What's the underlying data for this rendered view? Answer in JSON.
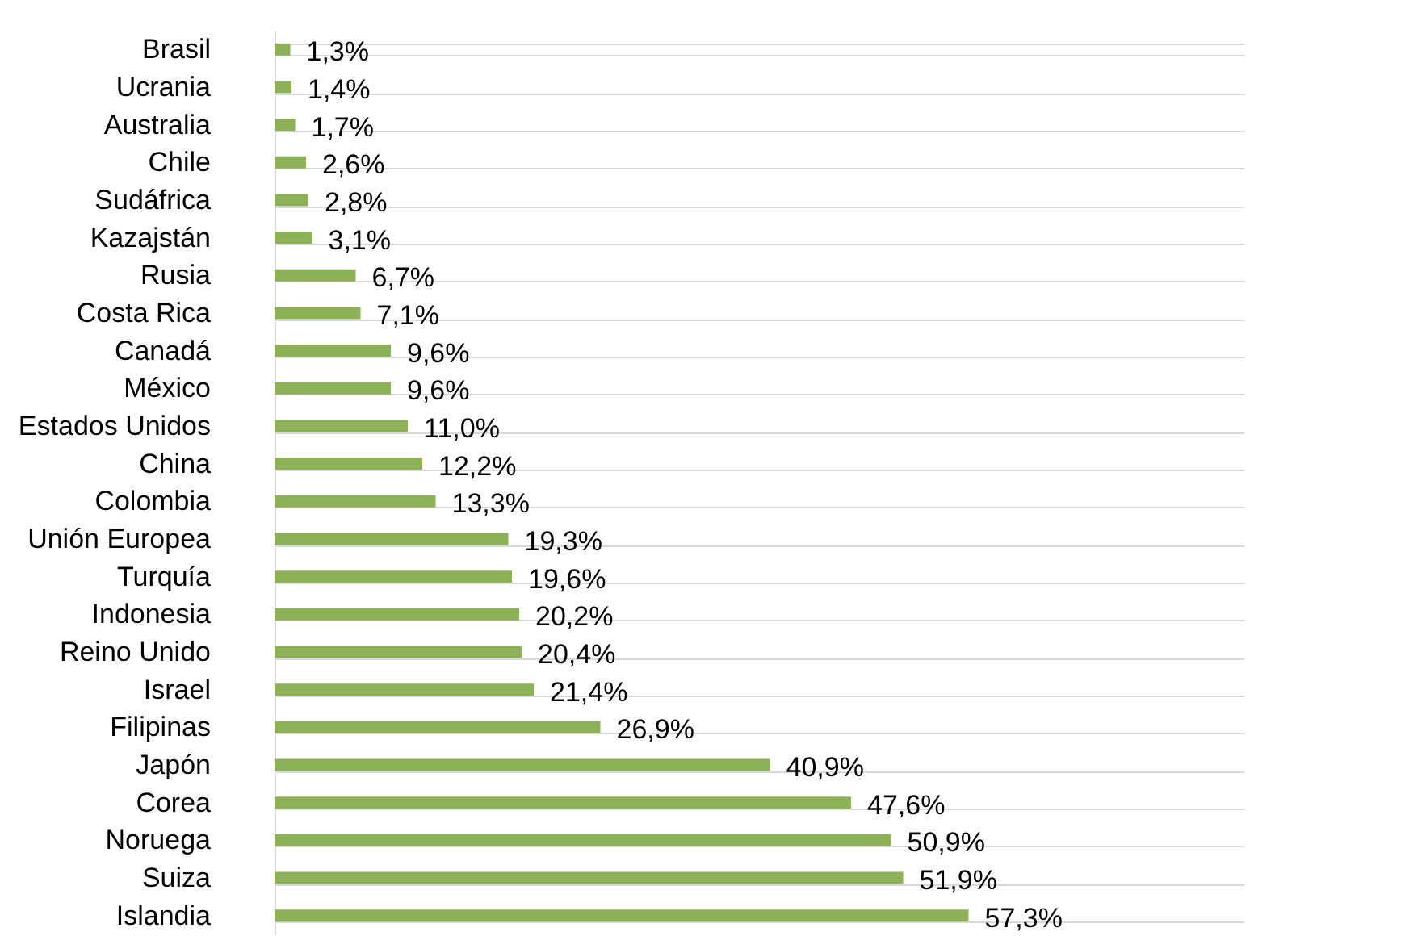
{
  "chart_data": {
    "type": "bar",
    "orientation": "horizontal",
    "categories": [
      "Brasil",
      "Ucrania",
      "Australia",
      "Chile",
      "Sudáfrica",
      "Kazajstán",
      "Rusia",
      "Costa Rica",
      "Canadá",
      "México",
      "Estados Unidos",
      "China",
      "Colombia",
      "Unión Europea",
      "Turquía",
      "Indonesia",
      "Reino Unido",
      "Israel",
      "Filipinas",
      "Japón",
      "Corea",
      "Noruega",
      "Suiza",
      "Islandia"
    ],
    "values": [
      1.3,
      1.4,
      1.7,
      2.6,
      2.8,
      3.1,
      6.7,
      7.1,
      9.6,
      9.6,
      11.0,
      12.2,
      13.3,
      19.3,
      19.6,
      20.2,
      20.4,
      21.4,
      26.9,
      40.9,
      47.6,
      50.9,
      51.9,
      57.3
    ],
    "value_labels": [
      "1,3%",
      "1,4%",
      "1,7%",
      "2,6%",
      "2,8%",
      "3,1%",
      "6,7%",
      "7,1%",
      "9,6%",
      "9,6%",
      "11,0%",
      "12,2%",
      "13,3%",
      "19,3%",
      "19,6%",
      "20,2%",
      "20,4%",
      "21,4%",
      "26,9%",
      "40,9%",
      "47,6%",
      "50,9%",
      "51,9%",
      "57,3%"
    ],
    "color": "#8cb159",
    "xlim": [
      0,
      80
    ],
    "tick_labels": "y",
    "grid": "y"
  }
}
